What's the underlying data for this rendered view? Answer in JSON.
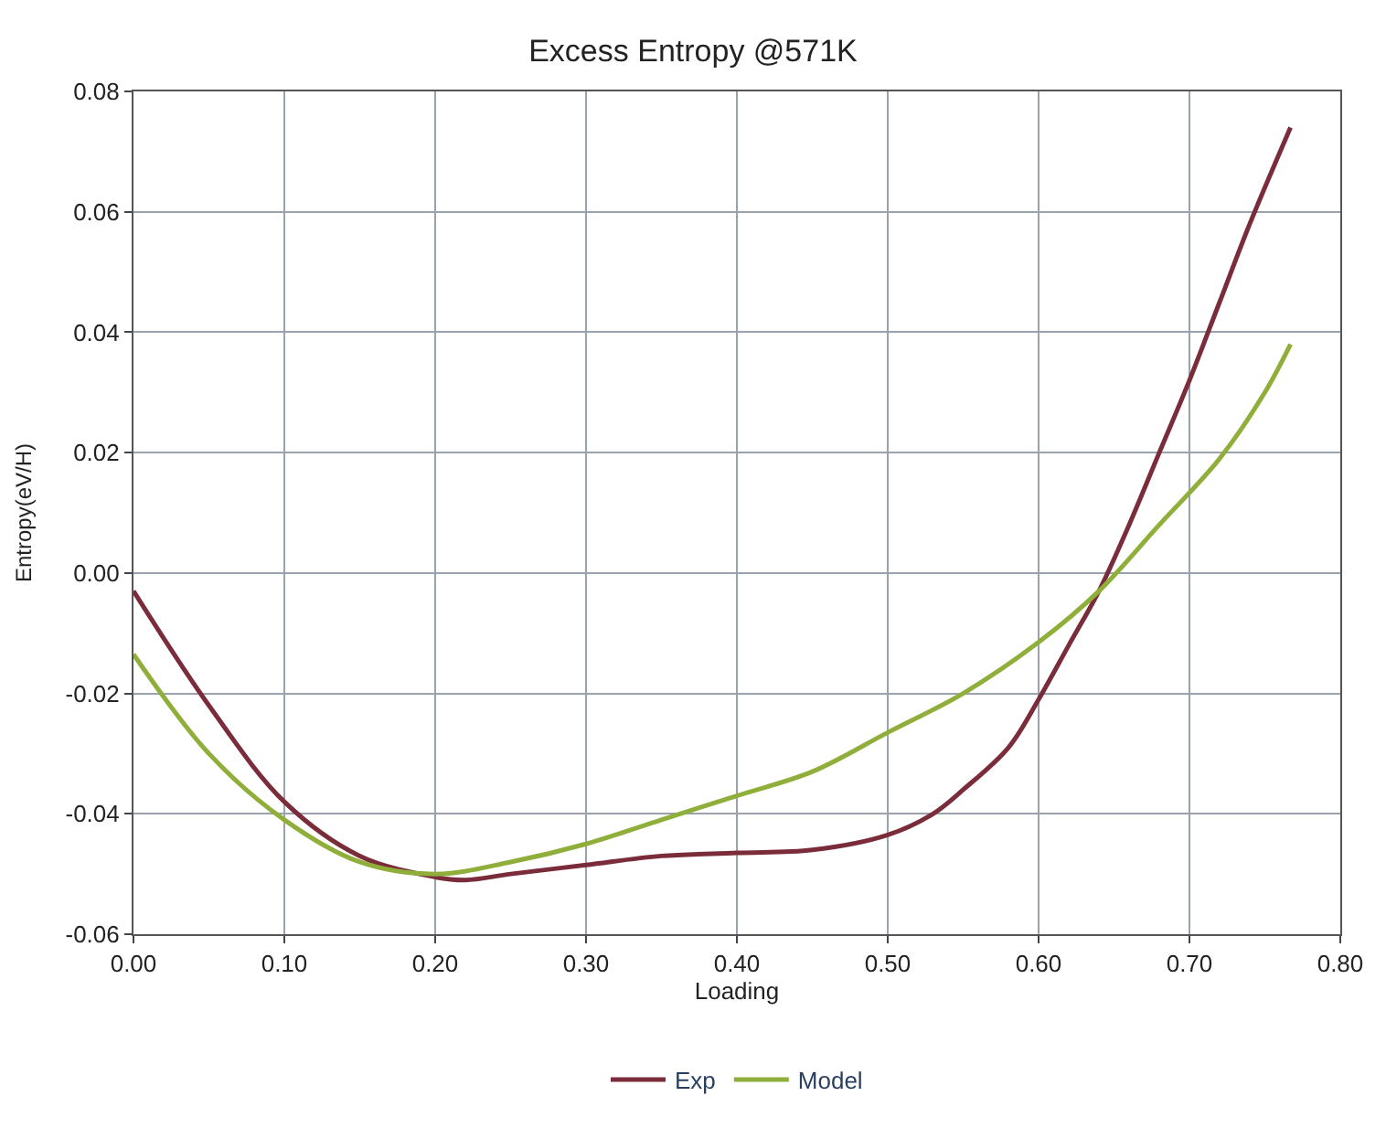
{
  "chart_data": {
    "type": "line",
    "title": "Excess Entropy @571K",
    "xlabel": "Loading",
    "ylabel": "Entropy(eV/H)",
    "xlim": [
      0,
      0.8
    ],
    "xticks": [
      {
        "value": 0,
        "label": "0.00"
      },
      {
        "value": 0.1,
        "label": "0.10"
      },
      {
        "value": 0.2,
        "label": "0.20"
      },
      {
        "value": 0.3,
        "label": "0.30"
      },
      {
        "value": 0.4,
        "label": "0.40"
      },
      {
        "value": 0.5,
        "label": "0.50"
      },
      {
        "value": 0.6,
        "label": "0.60"
      },
      {
        "value": 0.7,
        "label": "0.70"
      },
      {
        "value": 0.8,
        "label": "0.80"
      }
    ],
    "ylim": [
      -0.06,
      0.08
    ],
    "yticks": [
      {
        "value": -0.06,
        "label": "-0.06"
      },
      {
        "value": -0.04,
        "label": "-0.04"
      },
      {
        "value": -0.02,
        "label": "-0.02"
      },
      {
        "value": 0,
        "label": "0.00"
      },
      {
        "value": 0.02,
        "label": "0.02"
      },
      {
        "value": 0.04,
        "label": "0.04"
      },
      {
        "value": 0.06,
        "label": "0.06"
      },
      {
        "value": 0.08,
        "label": "0.08"
      }
    ],
    "grid": true,
    "legend": "bottom",
    "marker": "none",
    "line_style": "solid",
    "series": [
      {
        "name": "Exp",
        "color": "#7b2c3a",
        "x": [
          0,
          0.05,
          0.1,
          0.15,
          0.2,
          0.22,
          0.25,
          0.3,
          0.35,
          0.4,
          0.45,
          0.5,
          0.53,
          0.55,
          0.58,
          0.6,
          0.62,
          0.64,
          0.66,
          0.68,
          0.7,
          0.72,
          0.74,
          0.767
        ],
        "values": [
          -0.003,
          -0.022,
          -0.038,
          -0.047,
          -0.0505,
          -0.051,
          -0.05,
          -0.0485,
          -0.047,
          -0.0465,
          -0.046,
          -0.0435,
          -0.04,
          -0.036,
          -0.029,
          -0.021,
          -0.012,
          -0.003,
          0.008,
          0.02,
          0.032,
          0.045,
          0.058,
          0.074
        ]
      },
      {
        "name": "Model",
        "color": "#8fae3a",
        "x": [
          0,
          0.05,
          0.1,
          0.15,
          0.2,
          0.25,
          0.3,
          0.35,
          0.4,
          0.45,
          0.5,
          0.55,
          0.6,
          0.64,
          0.68,
          0.72,
          0.75,
          0.767
        ],
        "values": [
          -0.0135,
          -0.03,
          -0.041,
          -0.048,
          -0.05,
          -0.048,
          -0.045,
          -0.041,
          -0.037,
          -0.033,
          -0.0265,
          -0.02,
          -0.0115,
          -0.003,
          0.008,
          0.019,
          0.03,
          0.038
        ]
      }
    ]
  }
}
